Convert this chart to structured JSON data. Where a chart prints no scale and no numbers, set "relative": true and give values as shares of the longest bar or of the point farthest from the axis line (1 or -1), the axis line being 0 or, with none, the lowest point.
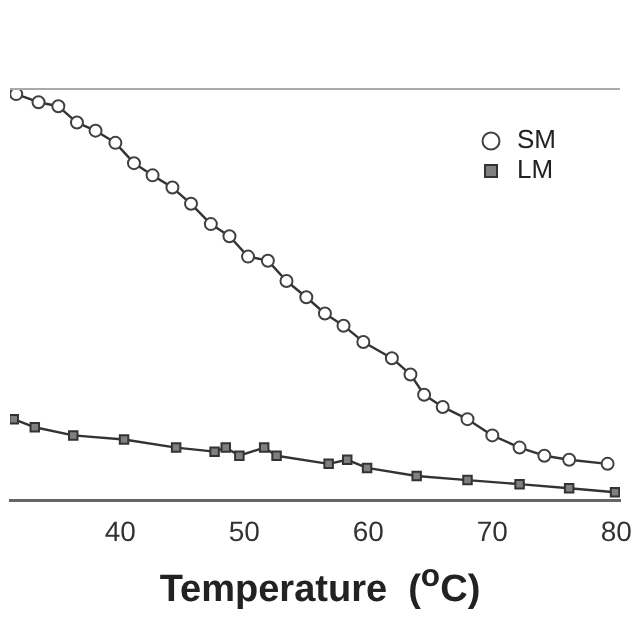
{
  "chart_data": {
    "type": "line",
    "xlabel": "Temperature  ($^{o}$C)",
    "relative": true,
    "xlim": [
      31.1,
      80.3
    ],
    "xticks": [
      40,
      50,
      60,
      70,
      80
    ],
    "grid": false,
    "legend": "right",
    "tick_labels": "x",
    "series": [
      {
        "name": "SM",
        "color": "#404040",
        "marker": "circle",
        "x": [
          31.6,
          33.4,
          35.0,
          36.5,
          38.0,
          39.6,
          41.1,
          42.6,
          44.2,
          45.7,
          47.3,
          48.8,
          50.3,
          51.9,
          53.4,
          55.0,
          56.5,
          58.0,
          59.6,
          61.9,
          63.4,
          64.5,
          66.0,
          68.0,
          70.0,
          72.2,
          74.2,
          76.2,
          79.3
        ],
        "values": [
          1.0,
          0.98,
          0.97,
          0.93,
          0.91,
          0.88,
          0.83,
          0.8,
          0.77,
          0.73,
          0.68,
          0.65,
          0.6,
          0.59,
          0.54,
          0.5,
          0.46,
          0.43,
          0.39,
          0.35,
          0.31,
          0.26,
          0.23,
          0.2,
          0.16,
          0.13,
          0.11,
          0.1,
          0.09
        ]
      },
      {
        "name": "LM",
        "color": "#808080",
        "marker": "square",
        "x": [
          31.4,
          33.1,
          36.2,
          40.3,
          44.5,
          47.6,
          48.5,
          49.6,
          51.6,
          52.6,
          56.8,
          58.3,
          59.9,
          63.9,
          68.0,
          72.2,
          76.2,
          79.9
        ],
        "values": [
          0.2,
          0.18,
          0.16,
          0.15,
          0.13,
          0.12,
          0.13,
          0.11,
          0.13,
          0.11,
          0.09,
          0.1,
          0.08,
          0.06,
          0.05,
          0.04,
          0.03,
          0.02
        ]
      }
    ]
  }
}
